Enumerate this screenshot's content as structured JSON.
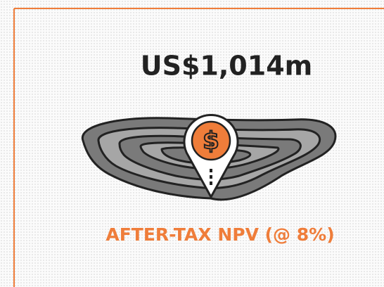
{
  "headline": "US$1,014m",
  "icon_text": "$",
  "label": "AFTER-TAX NPV (@ 8%)"
}
